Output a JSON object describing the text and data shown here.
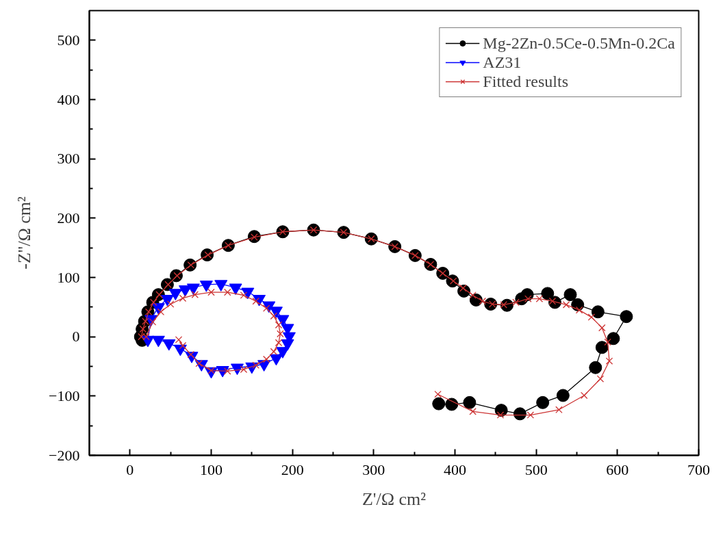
{
  "chart_data": {
    "type": "line",
    "xlabel": "Z'/Ω cm²",
    "ylabel": "-Z''/Ω cm²",
    "xlim": [
      -50,
      700
    ],
    "ylim": [
      -200,
      550
    ],
    "xticks": [
      0,
      100,
      200,
      300,
      400,
      500,
      600,
      700
    ],
    "yticks": [
      -200,
      -100,
      0,
      100,
      200,
      300,
      400,
      500
    ],
    "grid": false,
    "legend": "top right",
    "series": [
      {
        "name": "Mg-2Zn-0.5Ce-0.5Mn-0.2Ca",
        "color": "#000000",
        "marker": "circle",
        "x": [
          15,
          13,
          15,
          18,
          22,
          28,
          35,
          46,
          57,
          74,
          95,
          121,
          153,
          188,
          226,
          263,
          297,
          326,
          351,
          370,
          385,
          397,
          411,
          426,
          444,
          464,
          482,
          489,
          514,
          523,
          542,
          551,
          576,
          611,
          595,
          581,
          573,
          533,
          508,
          480,
          457,
          418,
          396,
          380
        ],
        "values": [
          -6,
          0,
          13,
          26,
          42,
          58,
          71,
          88,
          103,
          121,
          138,
          154,
          169,
          177,
          180,
          176,
          165,
          152,
          137,
          122,
          107,
          94,
          77,
          62,
          55,
          53,
          64,
          71,
          73,
          58,
          71,
          54,
          42,
          34,
          -3,
          -18,
          -52,
          -99,
          -111,
          -130,
          -124,
          -111,
          -114,
          -113
        ]
      },
      {
        "name": "AZ31",
        "color": "#0000ff",
        "marker": "triangle",
        "x": [
          22,
          26,
          35,
          46,
          56,
          68,
          78,
          94,
          112,
          130,
          145,
          159,
          171,
          180,
          188,
          194,
          196,
          194,
          188,
          180,
          165,
          150,
          132,
          114,
          100,
          88,
          76,
          62,
          48,
          35
        ],
        "values": [
          -5,
          30,
          50,
          64,
          74,
          80,
          83,
          88,
          89,
          83,
          76,
          64,
          53,
          44,
          30,
          15,
          1,
          -11,
          -24,
          -36,
          -46,
          -50,
          -52,
          -56,
          -58,
          -46,
          -32,
          -20,
          -11,
          -5
        ]
      },
      {
        "name": "Fitted results",
        "color": "#cc3333",
        "marker": "x",
        "x": [
          14,
          16,
          19,
          23,
          29,
          36,
          47,
          58,
          75,
          96,
          121,
          153,
          188,
          226,
          263,
          297,
          326,
          351,
          370,
          385,
          398,
          410,
          422,
          434,
          446,
          460,
          475,
          490,
          504,
          520,
          537,
          553,
          568,
          581,
          588,
          590,
          579,
          559,
          528,
          493,
          456,
          422,
          379,
          null,
          20,
          28,
          38,
          50,
          65,
          80,
          100,
          120,
          140,
          155,
          168,
          177,
          183,
          185,
          183,
          177,
          168,
          155,
          140,
          120,
          100,
          85,
          75,
          65,
          60
        ],
        "values": [
          0,
          13,
          26,
          42,
          58,
          71,
          88,
          103,
          121,
          138,
          154,
          168,
          177,
          180,
          176,
          165,
          152,
          137,
          122,
          107,
          94,
          82,
          70,
          60,
          55,
          54,
          58,
          64,
          64,
          60,
          54,
          45,
          33,
          15,
          -9,
          -41,
          -71,
          -99,
          -123,
          -132,
          -132,
          -126,
          -97,
          null,
          0,
          25,
          42,
          55,
          65,
          71,
          75,
          75,
          70,
          60,
          48,
          35,
          20,
          5,
          -10,
          -25,
          -38,
          -48,
          -55,
          -58,
          -57,
          -45,
          -30,
          -15,
          -5
        ]
      }
    ]
  }
}
